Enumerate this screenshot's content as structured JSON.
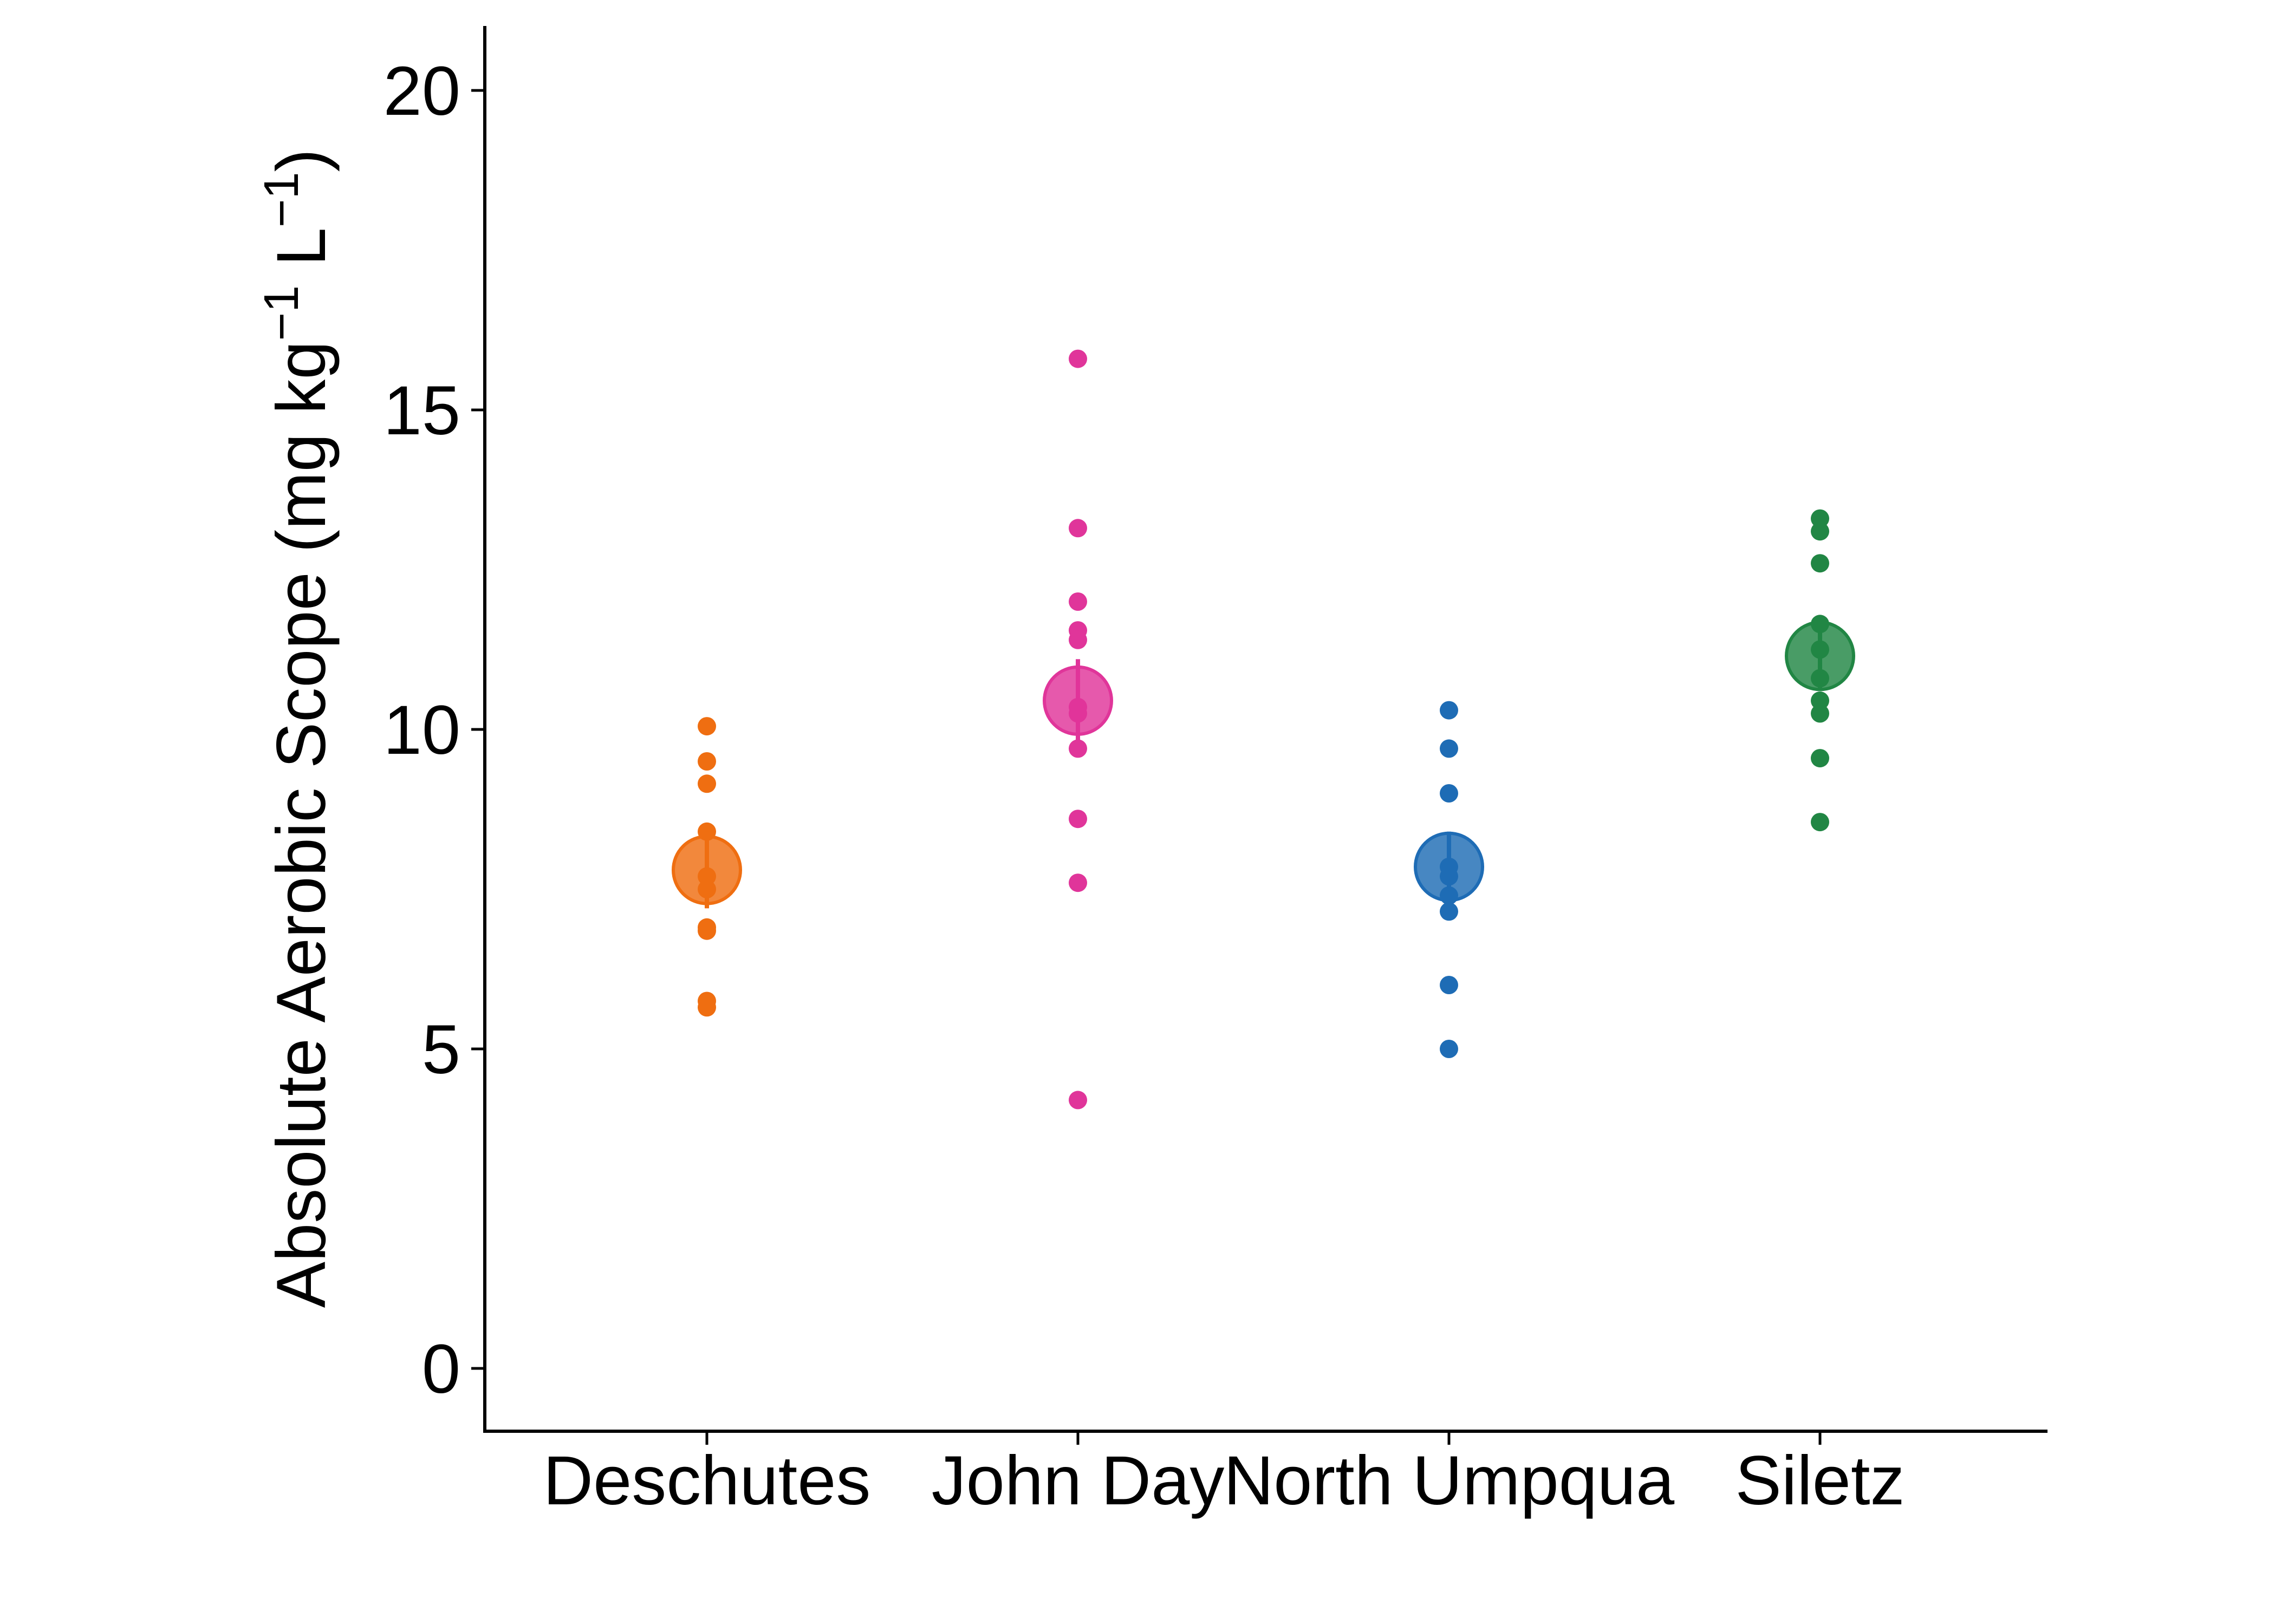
{
  "chart_data": {
    "type": "scatter",
    "title": "",
    "xlabel": "",
    "ylabel": {
      "prefix": "Absolute Aerobic Scope (mg kg",
      "sup1": "−1",
      "middle": " L",
      "sup2": "−1",
      "suffix": ")"
    },
    "ylim": [
      -1,
      21
    ],
    "yticks": [
      0,
      5,
      10,
      15,
      20
    ],
    "grid": false,
    "legend": "none",
    "categories": [
      "Deschutes",
      "John Day",
      "North Umpqua",
      "Siletz"
    ],
    "series": [
      {
        "category": "Deschutes",
        "color": "#EF6E11",
        "points": [
          10.05,
          9.5,
          9.15,
          8.4,
          7.7,
          7.5,
          6.9,
          6.85,
          5.75,
          5.65
        ],
        "mean": 7.8,
        "error": [
          7.2,
          8.4
        ]
      },
      {
        "category": "John Day",
        "color": "#E0359A",
        "points": [
          15.8,
          13.15,
          12.0,
          11.55,
          11.4,
          10.35,
          10.25,
          9.7,
          8.6,
          7.6,
          4.2
        ],
        "mean": 10.45,
        "error": [
          9.8,
          11.1
        ]
      },
      {
        "category": "North Umpqua",
        "color": "#1E6CB5",
        "points": [
          10.3,
          9.7,
          9.0,
          7.85,
          7.7,
          7.4,
          7.15,
          6.0,
          5.0
        ],
        "mean": 7.85,
        "error": [
          7.3,
          8.4
        ]
      },
      {
        "category": "Siletz",
        "color": "#218644",
        "points": [
          13.3,
          13.1,
          12.6,
          11.65,
          11.25,
          10.8,
          10.45,
          10.25,
          9.55,
          8.55
        ],
        "mean": 11.15,
        "error": [
          10.6,
          11.7
        ]
      }
    ]
  }
}
